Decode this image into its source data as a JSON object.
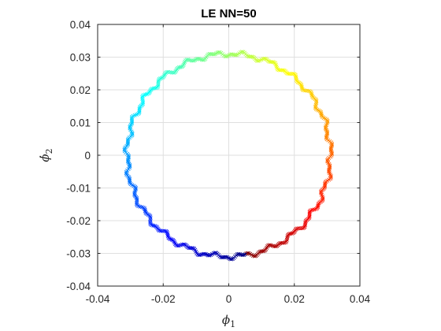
{
  "chart_data": {
    "type": "scatter",
    "title": "LE NN=50",
    "xlabel": {
      "symbol": "ϕ",
      "sub": "1"
    },
    "ylabel": {
      "symbol": "ϕ̇",
      "sub": "2"
    },
    "xlim": [
      -0.04,
      0.04
    ],
    "ylim": [
      -0.04,
      0.04
    ],
    "x_ticks": [
      -0.04,
      -0.02,
      0,
      0.02,
      0.04
    ],
    "x_tick_labels": [
      "-0.04",
      "-0.02",
      "0",
      "0.02",
      "0.04"
    ],
    "y_ticks": [
      -0.04,
      -0.03,
      -0.02,
      -0.01,
      0,
      0.01,
      0.02,
      0.03,
      0.04
    ],
    "y_tick_labels": [
      "-0.04",
      "-0.03",
      "-0.02",
      "-0.01",
      "0",
      "0.01",
      "0.02",
      "0.03",
      "0.04"
    ],
    "grid": true,
    "colormap": "jet",
    "marker": "x",
    "circle": {
      "center": [
        0.0,
        0.0
      ],
      "radius": 0.031,
      "num_points": 500,
      "color_start_angle_deg": -80
    }
  }
}
